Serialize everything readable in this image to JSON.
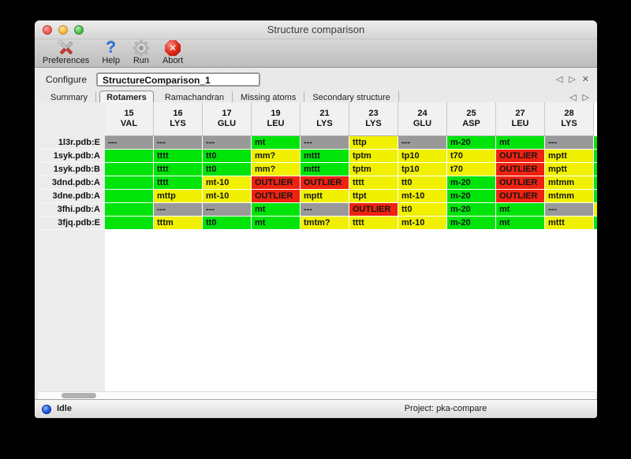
{
  "window": {
    "title": "Structure comparison"
  },
  "toolbar": {
    "buttons": [
      {
        "label": "Preferences",
        "icon": "tools-icon"
      },
      {
        "label": "Help",
        "icon": "help-icon"
      },
      {
        "label": "Run",
        "icon": "gear-icon"
      },
      {
        "label": "Abort",
        "icon": "abort-icon"
      }
    ]
  },
  "icons": {
    "help": "?",
    "abort_x": "✕",
    "prev": "◁",
    "next": "▷",
    "close": "✕"
  },
  "configure": {
    "label": "Configure",
    "value": "StructureComparison_1"
  },
  "tabs": {
    "active": "Rotamers",
    "items": [
      {
        "label": "Summary"
      },
      {
        "label": "Rotamers"
      },
      {
        "label": "Ramachandran"
      },
      {
        "label": "Missing atoms"
      },
      {
        "label": "Secondary structure"
      }
    ]
  },
  "colors": {
    "green": "#00e40a",
    "yellow": "#f0f000",
    "red": "#ee2211",
    "gray": "#999999"
  },
  "table": {
    "columns": [
      {
        "number": "15",
        "residue": "VAL"
      },
      {
        "number": "16",
        "residue": "LYS"
      },
      {
        "number": "17",
        "residue": "GLU"
      },
      {
        "number": "19",
        "residue": "LEU"
      },
      {
        "number": "21",
        "residue": "LYS"
      },
      {
        "number": "23",
        "residue": "LYS"
      },
      {
        "number": "24",
        "residue": "GLU"
      },
      {
        "number": "25",
        "residue": "ASP"
      },
      {
        "number": "27",
        "residue": "LEU"
      },
      {
        "number": "28",
        "residue": "LYS"
      }
    ],
    "rows": [
      {
        "label": "1l3r.pdb:E",
        "overflow_status": "green",
        "cells": [
          {
            "text": "---",
            "status": "gray"
          },
          {
            "text": "---",
            "status": "gray"
          },
          {
            "text": "---",
            "status": "gray"
          },
          {
            "text": "mt",
            "status": "green"
          },
          {
            "text": "---",
            "status": "gray"
          },
          {
            "text": "tttp",
            "status": "yellow"
          },
          {
            "text": "---",
            "status": "gray"
          },
          {
            "text": "m-20",
            "status": "green"
          },
          {
            "text": "mt",
            "status": "green"
          },
          {
            "text": "---",
            "status": "gray"
          }
        ]
      },
      {
        "label": "1syk.pdb:A",
        "overflow_status": "green",
        "cells": [
          {
            "text": "",
            "status": "green"
          },
          {
            "text": "tttt",
            "status": "green"
          },
          {
            "text": "tt0",
            "status": "green"
          },
          {
            "text": "mm?",
            "status": "yellow"
          },
          {
            "text": "mttt",
            "status": "green"
          },
          {
            "text": "tptm",
            "status": "yellow"
          },
          {
            "text": "tp10",
            "status": "yellow"
          },
          {
            "text": "t70",
            "status": "yellow"
          },
          {
            "text": "OUTLIER",
            "status": "red"
          },
          {
            "text": "mptt",
            "status": "yellow"
          }
        ]
      },
      {
        "label": "1syk.pdb:B",
        "overflow_status": "green",
        "cells": [
          {
            "text": "",
            "status": "green"
          },
          {
            "text": "tttt",
            "status": "green"
          },
          {
            "text": "tt0",
            "status": "green"
          },
          {
            "text": "mm?",
            "status": "yellow"
          },
          {
            "text": "mttt",
            "status": "green"
          },
          {
            "text": "tptm",
            "status": "yellow"
          },
          {
            "text": "tp10",
            "status": "yellow"
          },
          {
            "text": "t70",
            "status": "yellow"
          },
          {
            "text": "OUTLIER",
            "status": "red"
          },
          {
            "text": "mptt",
            "status": "yellow"
          }
        ]
      },
      {
        "label": "3dnd.pdb:A",
        "overflow_status": "green",
        "cells": [
          {
            "text": "",
            "status": "green"
          },
          {
            "text": "tttt",
            "status": "green"
          },
          {
            "text": "mt-10",
            "status": "yellow"
          },
          {
            "text": "OUTLIER",
            "status": "red"
          },
          {
            "text": "OUTLIER",
            "status": "red"
          },
          {
            "text": "tttt",
            "status": "yellow"
          },
          {
            "text": "tt0",
            "status": "yellow"
          },
          {
            "text": "m-20",
            "status": "green"
          },
          {
            "text": "OUTLIER",
            "status": "red"
          },
          {
            "text": "mtmm",
            "status": "yellow"
          }
        ]
      },
      {
        "label": "3dne.pdb:A",
        "overflow_status": "green",
        "cells": [
          {
            "text": "",
            "status": "green"
          },
          {
            "text": "mttp",
            "status": "yellow"
          },
          {
            "text": "mt-10",
            "status": "yellow"
          },
          {
            "text": "OUTLIER",
            "status": "red"
          },
          {
            "text": "mptt",
            "status": "yellow"
          },
          {
            "text": "ttpt",
            "status": "yellow"
          },
          {
            "text": "mt-10",
            "status": "yellow"
          },
          {
            "text": "m-20",
            "status": "green"
          },
          {
            "text": "OUTLIER",
            "status": "red"
          },
          {
            "text": "mtmm",
            "status": "yellow"
          }
        ]
      },
      {
        "label": "3fhi.pdb:A",
        "overflow_status": "yellow",
        "cells": [
          {
            "text": "",
            "status": "green"
          },
          {
            "text": "---",
            "status": "gray"
          },
          {
            "text": "---",
            "status": "gray"
          },
          {
            "text": "mt",
            "status": "green"
          },
          {
            "text": "---",
            "status": "gray"
          },
          {
            "text": "OUTLIER",
            "status": "red"
          },
          {
            "text": "tt0",
            "status": "yellow"
          },
          {
            "text": "m-20",
            "status": "green"
          },
          {
            "text": "mt",
            "status": "green"
          },
          {
            "text": "---",
            "status": "gray"
          }
        ]
      },
      {
        "label": "3fjq.pdb:E",
        "overflow_status": "green",
        "cells": [
          {
            "text": "",
            "status": "green"
          },
          {
            "text": "tttm",
            "status": "yellow"
          },
          {
            "text": "tt0",
            "status": "green"
          },
          {
            "text": "mt",
            "status": "green"
          },
          {
            "text": "tmtm?",
            "status": "yellow"
          },
          {
            "text": "tttt",
            "status": "yellow"
          },
          {
            "text": "mt-10",
            "status": "yellow"
          },
          {
            "text": "m-20",
            "status": "green"
          },
          {
            "text": "mt",
            "status": "green"
          },
          {
            "text": "mttt",
            "status": "yellow"
          }
        ]
      }
    ]
  },
  "statusbar": {
    "status": "Idle",
    "project": "Project: pka-compare"
  }
}
